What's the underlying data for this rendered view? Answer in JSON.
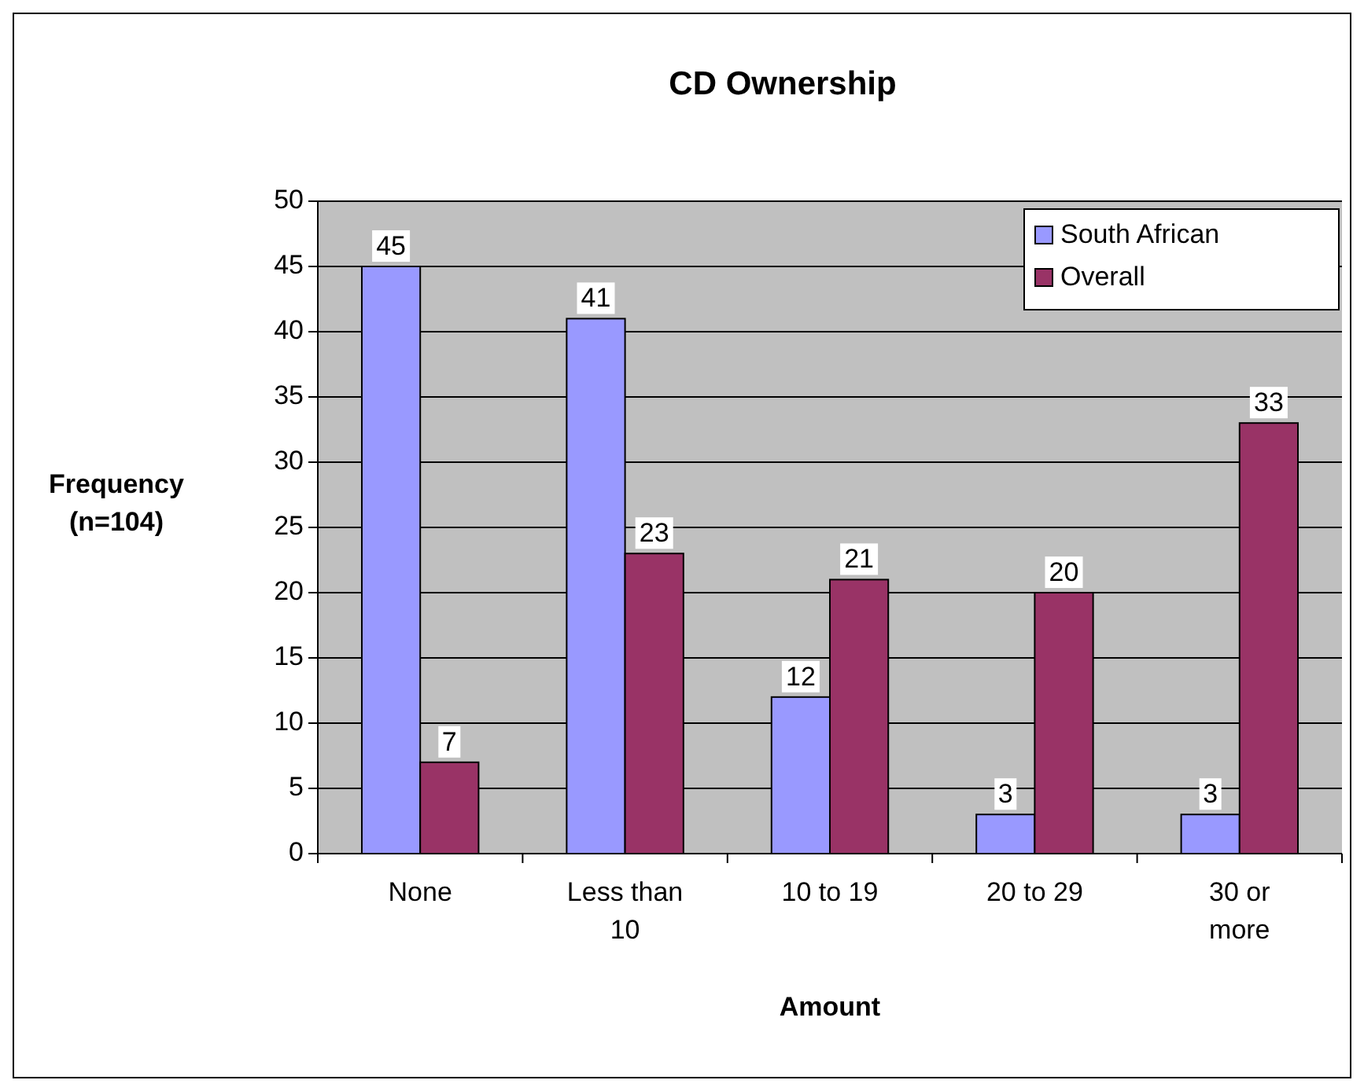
{
  "chart_data": {
    "type": "bar",
    "title": "CD  Ownership",
    "xlabel": "Amount",
    "ylabel": "Frequency (n=104)",
    "categories": [
      "None",
      "Less than 10",
      "10 to 19",
      "20 to 29",
      "30 or more"
    ],
    "series": [
      {
        "name": "South African",
        "color": "#9999ff",
        "values": [
          45,
          41,
          12,
          3,
          3
        ]
      },
      {
        "name": "Overall",
        "color": "#993366",
        "values": [
          7,
          23,
          21,
          20,
          33
        ]
      }
    ],
    "ylim": [
      0,
      50
    ],
    "yticks": [
      0,
      5,
      10,
      15,
      20,
      25,
      30,
      35,
      40,
      45,
      50
    ],
    "grid": "y",
    "legend": "top right",
    "data_labels": true
  }
}
